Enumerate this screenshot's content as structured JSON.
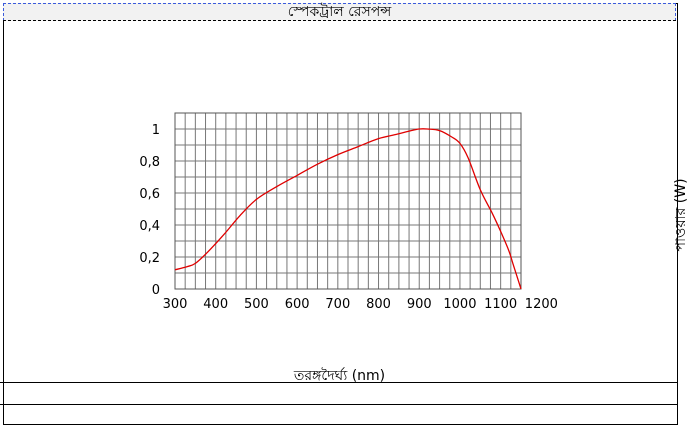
{
  "chart_data": {
    "type": "line",
    "title": "স্পেকট্রাল রেসপন্স",
    "xlabel": "তরঙ্গদৈর্ঘ্য (nm)",
    "ylabel": "পাওয়ার (W)",
    "xlim": [
      300,
      1150
    ],
    "ylim": [
      0,
      1.0
    ],
    "xticks": [
      300,
      400,
      500,
      600,
      700,
      800,
      900,
      1000,
      1100,
      1200
    ],
    "xtick_labels": [
      "300",
      "400",
      "500",
      "600",
      "700",
      "800",
      "900",
      "1000",
      "1100",
      "1200"
    ],
    "yticks": [
      0,
      0.2,
      0.4,
      0.6,
      0.8,
      1
    ],
    "ytick_labels": [
      "0",
      "0,2",
      "0,4",
      "0,6",
      "0,8",
      "1"
    ],
    "grid": true,
    "line_color": "#e00000",
    "x": [
      300,
      330,
      350,
      380,
      420,
      460,
      500,
      550,
      600,
      650,
      700,
      750,
      800,
      850,
      880,
      900,
      920,
      950,
      980,
      1000,
      1020,
      1050,
      1080,
      1100,
      1120,
      1130,
      1140,
      1150
    ],
    "y": [
      0.12,
      0.14,
      0.16,
      0.23,
      0.34,
      0.46,
      0.56,
      0.64,
      0.71,
      0.78,
      0.84,
      0.89,
      0.94,
      0.97,
      0.99,
      1.0,
      1.0,
      0.99,
      0.95,
      0.91,
      0.82,
      0.62,
      0.47,
      0.36,
      0.24,
      0.16,
      0.08,
      0.0
    ]
  }
}
